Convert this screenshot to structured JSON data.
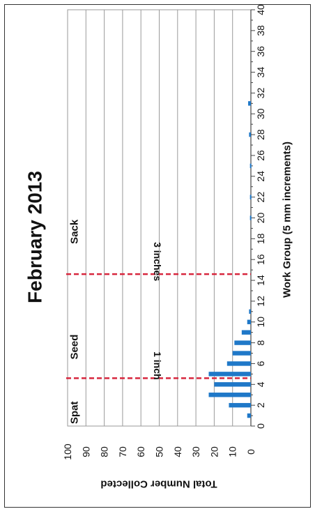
{
  "chart_data": {
    "type": "bar",
    "title": "February 2013",
    "xlabel": "Work Group (5 mm increments)",
    "ylabel": "Total Number Collected",
    "xlim": [
      0,
      40
    ],
    "ylim": [
      0,
      100
    ],
    "x_ticks": [
      "0",
      "2",
      "4",
      "6",
      "8",
      "10",
      "12",
      "14",
      "16",
      "18",
      "20",
      "22",
      "24",
      "26",
      "28",
      "30",
      "32",
      "34",
      "36",
      "38",
      "40"
    ],
    "y_ticks": [
      "0",
      "10",
      "20",
      "30",
      "40",
      "50",
      "60",
      "70",
      "80",
      "90",
      "100"
    ],
    "grid": true,
    "bar_color": "#1f78c8",
    "x": [
      1,
      2,
      3,
      4,
      5,
      6,
      7,
      8,
      9,
      10,
      11,
      20,
      22,
      25,
      28,
      31
    ],
    "values": [
      2,
      12,
      23,
      20,
      23,
      13,
      10,
      9,
      5,
      2,
      1,
      0.5,
      0.5,
      0.5,
      1,
      1.5
    ],
    "regions": [
      {
        "label": "Spat",
        "x": 0.2
      },
      {
        "label": "Seed",
        "x": 6.4
      },
      {
        "label": "Sack",
        "x": 17.5
      }
    ],
    "thresholds": [
      {
        "x": 4.6,
        "label": "1 inch",
        "color": "#d7263d"
      },
      {
        "x": 14.6,
        "label": "3 inches",
        "color": "#d7263d"
      }
    ]
  }
}
